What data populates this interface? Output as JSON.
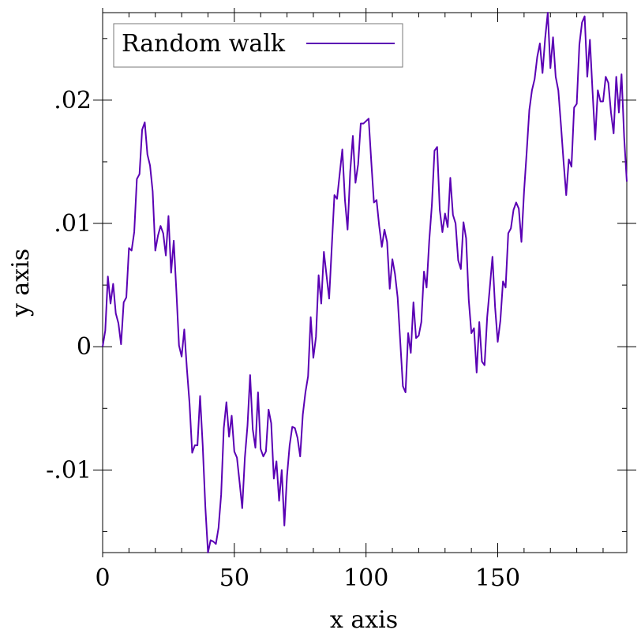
{
  "chart_data": {
    "type": "line",
    "title": "",
    "xlabel": "x axis",
    "ylabel": "y axis",
    "xlim": [
      0,
      199
    ],
    "ylim": [
      -0.0167,
      0.0271
    ],
    "x_ticks": [
      0,
      50,
      100,
      150
    ],
    "x_tick_labels": [
      "0",
      "50",
      "100",
      "150"
    ],
    "y_ticks": [
      -0.01,
      0,
      0.01,
      0.02
    ],
    "y_tick_labels": [
      "-.01",
      "0",
      ".01",
      ".02"
    ],
    "x_minor_step": 10,
    "y_minor_step": 0.005,
    "grid": false,
    "legend": {
      "position": "top-left"
    },
    "series": [
      {
        "name": "Random walk",
        "color": "#5a00b4",
        "x_start": 0,
        "x_step": 1,
        "y": [
          0.0,
          0.0013,
          0.0057,
          0.0035,
          0.0051,
          0.0027,
          0.0019,
          0.0002,
          0.0036,
          0.004,
          0.008,
          0.0078,
          0.0093,
          0.0136,
          0.014,
          0.0176,
          0.0182,
          0.0156,
          0.0147,
          0.0126,
          0.0078,
          0.009,
          0.0098,
          0.0092,
          0.0074,
          0.0106,
          0.006,
          0.0086,
          0.0045,
          0.0001,
          -0.0008,
          0.0014,
          -0.0018,
          -0.0046,
          -0.0086,
          -0.008,
          -0.008,
          -0.004,
          -0.008,
          -0.013,
          -0.0167,
          -0.0157,
          -0.0158,
          -0.016,
          -0.0147,
          -0.012,
          -0.0066,
          -0.0045,
          -0.0073,
          -0.0056,
          -0.0085,
          -0.009,
          -0.011,
          -0.0131,
          -0.009,
          -0.0064,
          -0.0023,
          -0.0067,
          -0.0082,
          -0.0037,
          -0.0083,
          -0.0089,
          -0.0085,
          -0.0051,
          -0.0062,
          -0.0107,
          -0.0093,
          -0.0125,
          -0.01,
          -0.0145,
          -0.0105,
          -0.008,
          -0.0065,
          -0.0066,
          -0.0074,
          -0.0089,
          -0.0055,
          -0.0037,
          -0.0024,
          0.0024,
          -0.0009,
          0.0008,
          0.0058,
          0.0035,
          0.0077,
          0.0058,
          0.0039,
          0.0081,
          0.0123,
          0.012,
          0.014,
          0.016,
          0.0119,
          0.0095,
          0.0142,
          0.0171,
          0.0133,
          0.0148,
          0.0181,
          0.0181,
          0.0183,
          0.0185,
          0.015,
          0.0117,
          0.0119,
          0.0098,
          0.0081,
          0.0095,
          0.0085,
          0.0047,
          0.0071,
          0.0059,
          0.004,
          0.0004,
          -0.0032,
          -0.0037,
          0.0011,
          -0.0005,
          0.0036,
          0.0007,
          0.0009,
          0.002,
          0.0061,
          0.0048,
          0.0086,
          0.0115,
          0.0159,
          0.0162,
          0.0111,
          0.0093,
          0.0108,
          0.0097,
          0.0137,
          0.0107,
          0.01,
          0.007,
          0.0063,
          0.0101,
          0.0088,
          0.0038,
          0.0011,
          0.0015,
          -0.0021,
          0.002,
          -0.0012,
          -0.0015,
          0.0024,
          0.0048,
          0.0073,
          0.0032,
          0.0004,
          0.0021,
          0.0053,
          0.0048,
          0.0092,
          0.0096,
          0.0111,
          0.0117,
          0.0112,
          0.0085,
          0.0126,
          0.0158,
          0.0192,
          0.0208,
          0.0217,
          0.0235,
          0.0246,
          0.0222,
          0.025,
          0.0271,
          0.0226,
          0.0251,
          0.0219,
          0.0208,
          0.018,
          0.015,
          0.0123,
          0.0152,
          0.0146,
          0.0194,
          0.0197,
          0.0245,
          0.0263,
          0.0268,
          0.0219,
          0.0249,
          0.0207,
          0.0168,
          0.0208,
          0.0199,
          0.0199,
          0.0219,
          0.0214,
          0.019,
          0.0173,
          0.0219,
          0.019,
          0.0221,
          0.017,
          0.0134
        ]
      }
    ]
  }
}
